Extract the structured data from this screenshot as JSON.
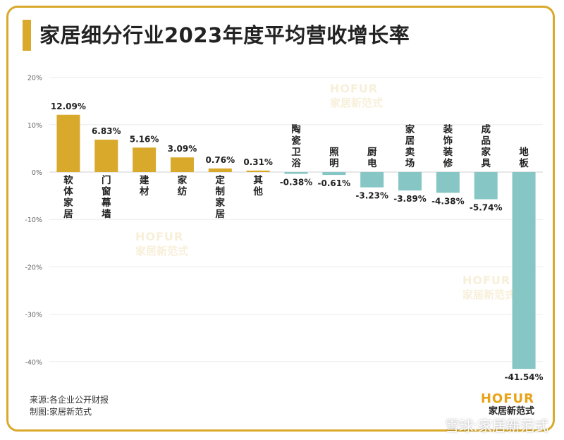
{
  "title": "家居细分行业2023年度平均营收增长率",
  "source_line": "来源:各企业公开财报",
  "made_by_line": "制图:家居新范式",
  "logo": {
    "en": "HOFUR",
    "cn": "家居新范式"
  },
  "watermark": {
    "en": "HOFUR",
    "cn": "家居新范式"
  },
  "xueqiu_watermark": "雪球:家居新范式",
  "colors": {
    "positive": "#D9A92B",
    "negative": "#86C6C4",
    "accent": "#D9A92B"
  },
  "chart_data": {
    "type": "bar",
    "categories": [
      "软体家居",
      "门窗幕墙",
      "建材",
      "家纺",
      "定制家居",
      "其他",
      "陶瓷卫浴",
      "照明",
      "厨电",
      "家居卖场",
      "装饰装修",
      "成品家具",
      "地板"
    ],
    "values": [
      12.09,
      6.83,
      5.16,
      3.09,
      0.76,
      0.31,
      -0.38,
      -0.61,
      -3.23,
      -3.89,
      -4.38,
      -5.74,
      -41.54
    ],
    "value_labels": [
      "12.09%",
      "6.83%",
      "5.16%",
      "3.09%",
      "0.76%",
      "0.31%",
      "-0.38%",
      "-0.61%",
      "-3.23%",
      "-3.89%",
      "-4.38%",
      "-5.74%",
      "-41.54%"
    ],
    "yticks": [
      20,
      10,
      0,
      -10,
      -20,
      -30,
      -40
    ],
    "ytick_labels": [
      "20%",
      "10%",
      "0%",
      "-10%",
      "-20%",
      "-30%",
      "-40%"
    ],
    "ylim": [
      -45,
      20
    ],
    "grid": true,
    "legend": "none"
  }
}
